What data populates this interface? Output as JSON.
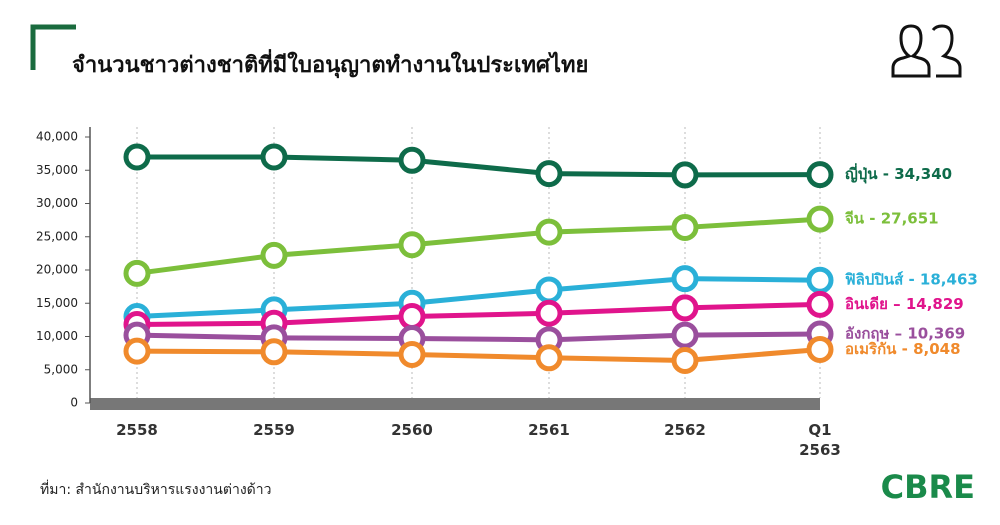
{
  "title": "จำนวนชาวต่างชาติที่มีใบอนุญาตทำงานในประเทศไทย",
  "source": "ที่มา: สำนักงานบริหารแรงงานต่างด้าว",
  "logo": "CBRE",
  "chart_data": {
    "type": "line",
    "categories": [
      "2558",
      "2559",
      "2560",
      "2561",
      "2562",
      "Q1 2563"
    ],
    "ylim": [
      0,
      40000
    ],
    "yticks": [
      0,
      {
        "value": 5000,
        "label": "5,000"
      },
      {
        "value": 10000,
        "label": "10,000"
      },
      {
        "value": 15000,
        "label": "15,000"
      },
      {
        "value": 20000,
        "label": "20,000"
      },
      {
        "value": 25000,
        "label": "25,000"
      },
      {
        "value": 30000,
        "label": "30,000"
      },
      {
        "value": 35000,
        "label": "35,000"
      },
      {
        "value": 40000,
        "label": "40,000"
      }
    ],
    "series": [
      {
        "name": "ญี่ปุ่น - 34,340",
        "color": "#0e6b4a",
        "values": [
          37000,
          37000,
          36500,
          34500,
          34300,
          34340
        ]
      },
      {
        "name": "จีน - 27,651",
        "color": "#7cbf3b",
        "values": [
          19500,
          22200,
          23800,
          25700,
          26400,
          27651
        ]
      },
      {
        "name": "ฟิลิปปินส์ - 18,463",
        "color": "#2ab0d8",
        "values": [
          13000,
          14000,
          15000,
          17000,
          18700,
          18463
        ]
      },
      {
        "name": "อินเดีย – 14,829",
        "color": "#e0148c",
        "values": [
          11800,
          12000,
          13000,
          13500,
          14300,
          14829
        ]
      },
      {
        "name": "อังกฤษ – 10,369",
        "color": "#9a4f9d",
        "values": [
          10200,
          9800,
          9700,
          9500,
          10200,
          10369
        ]
      },
      {
        "name": "อเมริกัน - 8,048",
        "color": "#f08a2c",
        "values": [
          7800,
          7700,
          7300,
          6800,
          6400,
          8048
        ]
      }
    ]
  }
}
